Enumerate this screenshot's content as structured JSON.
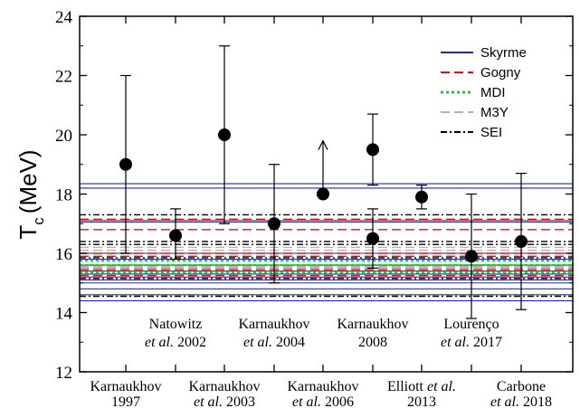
{
  "chart_data": {
    "type": "scatter",
    "xlabel": "",
    "ylabel_main": "T",
    "ylabel_sub": "c",
    "ylabel_unit": "(MeV)",
    "ylim": [
      12,
      24
    ],
    "yticks": [
      12,
      14,
      16,
      18,
      20,
      22,
      24
    ],
    "grid": false,
    "legend_position": "top-right",
    "legend": [
      {
        "name": "Skyrme",
        "color": "#1f2ab0",
        "style": "solid"
      },
      {
        "name": "Gogny",
        "color": "#e01010",
        "style": "dashed"
      },
      {
        "name": "MDI",
        "color": "#22cc22",
        "style": "dotted"
      },
      {
        "name": "M3Y",
        "color": "#c8a8b0",
        "style": "dashed"
      },
      {
        "name": "SEI",
        "color": "#000000",
        "style": "dashdot"
      }
    ],
    "measurements": [
      {
        "label_line1": "Karnaukhov",
        "label_line2": "1997",
        "label_it": "",
        "position": "bottom",
        "value": 19.0,
        "low": 16.0,
        "high": 22.0,
        "arrow_up": false
      },
      {
        "label_line1": "Natowitz",
        "label_line2": "2002",
        "label_it": "et al.",
        "position": "top",
        "value": 16.6,
        "low": 15.8,
        "high": 17.5,
        "arrow_up": false
      },
      {
        "label_line1": "Karnaukhov",
        "label_line2": "2003",
        "label_it": "et al.",
        "position": "bottom",
        "value": 20.0,
        "low": 17.0,
        "high": 23.0,
        "arrow_up": false
      },
      {
        "label_line1": "Karnaukhov",
        "label_line2": "2004",
        "label_it": "et al.",
        "position": "top",
        "value": 17.0,
        "low": 15.0,
        "high": 19.0,
        "arrow_up": false
      },
      {
        "label_line1": "Karnaukhov",
        "label_line2": "2006",
        "label_it": "et al.",
        "position": "bottom",
        "value": 18.0,
        "low": 18.0,
        "high": 19.8,
        "arrow_up": true
      },
      {
        "label_line1": "Karnaukhov",
        "label_line2": "2008",
        "label_it": "",
        "position": "top",
        "value": 19.5,
        "low": 18.3,
        "high": 20.7,
        "arrow_up": false
      },
      {
        "label_line1": "Karnaukhov",
        "label_line2": "2008",
        "label_it": "",
        "position": "none",
        "value": 16.5,
        "low": 15.5,
        "high": 17.5,
        "arrow_up": false
      },
      {
        "label_line1": "Elliott",
        "label_line2": "2013",
        "label_it": "et al.",
        "position": "bottom",
        "value": 17.9,
        "low": 17.5,
        "high": 18.3,
        "arrow_up": false
      },
      {
        "label_line1": "Lourenço",
        "label_line2": "2017",
        "label_it": "et al.",
        "position": "top",
        "value": 15.9,
        "low": 13.8,
        "high": 18.0,
        "arrow_up": false
      },
      {
        "label_line1": "Carbone",
        "label_line2": "2018",
        "label_it": "et al.",
        "position": "bottom",
        "value": 16.4,
        "low": 14.1,
        "high": 18.7,
        "arrow_up": false
      }
    ],
    "model_lines": {
      "Skyrme": [
        14.4,
        14.6,
        14.8,
        15.0,
        15.1,
        15.2,
        15.3,
        15.4,
        15.6,
        15.8,
        16.0,
        17.05,
        17.1,
        18.2,
        18.35
      ],
      "Gogny": [
        15.25,
        15.45,
        15.9,
        16.0,
        16.8,
        17.15
      ],
      "MDI": [
        15.35,
        15.6,
        15.75
      ],
      "M3Y": [
        15.5,
        15.55,
        16.1,
        16.2
      ],
      "SEI": [
        14.55,
        15.15,
        15.85,
        16.3,
        16.4,
        17.3
      ]
    }
  }
}
